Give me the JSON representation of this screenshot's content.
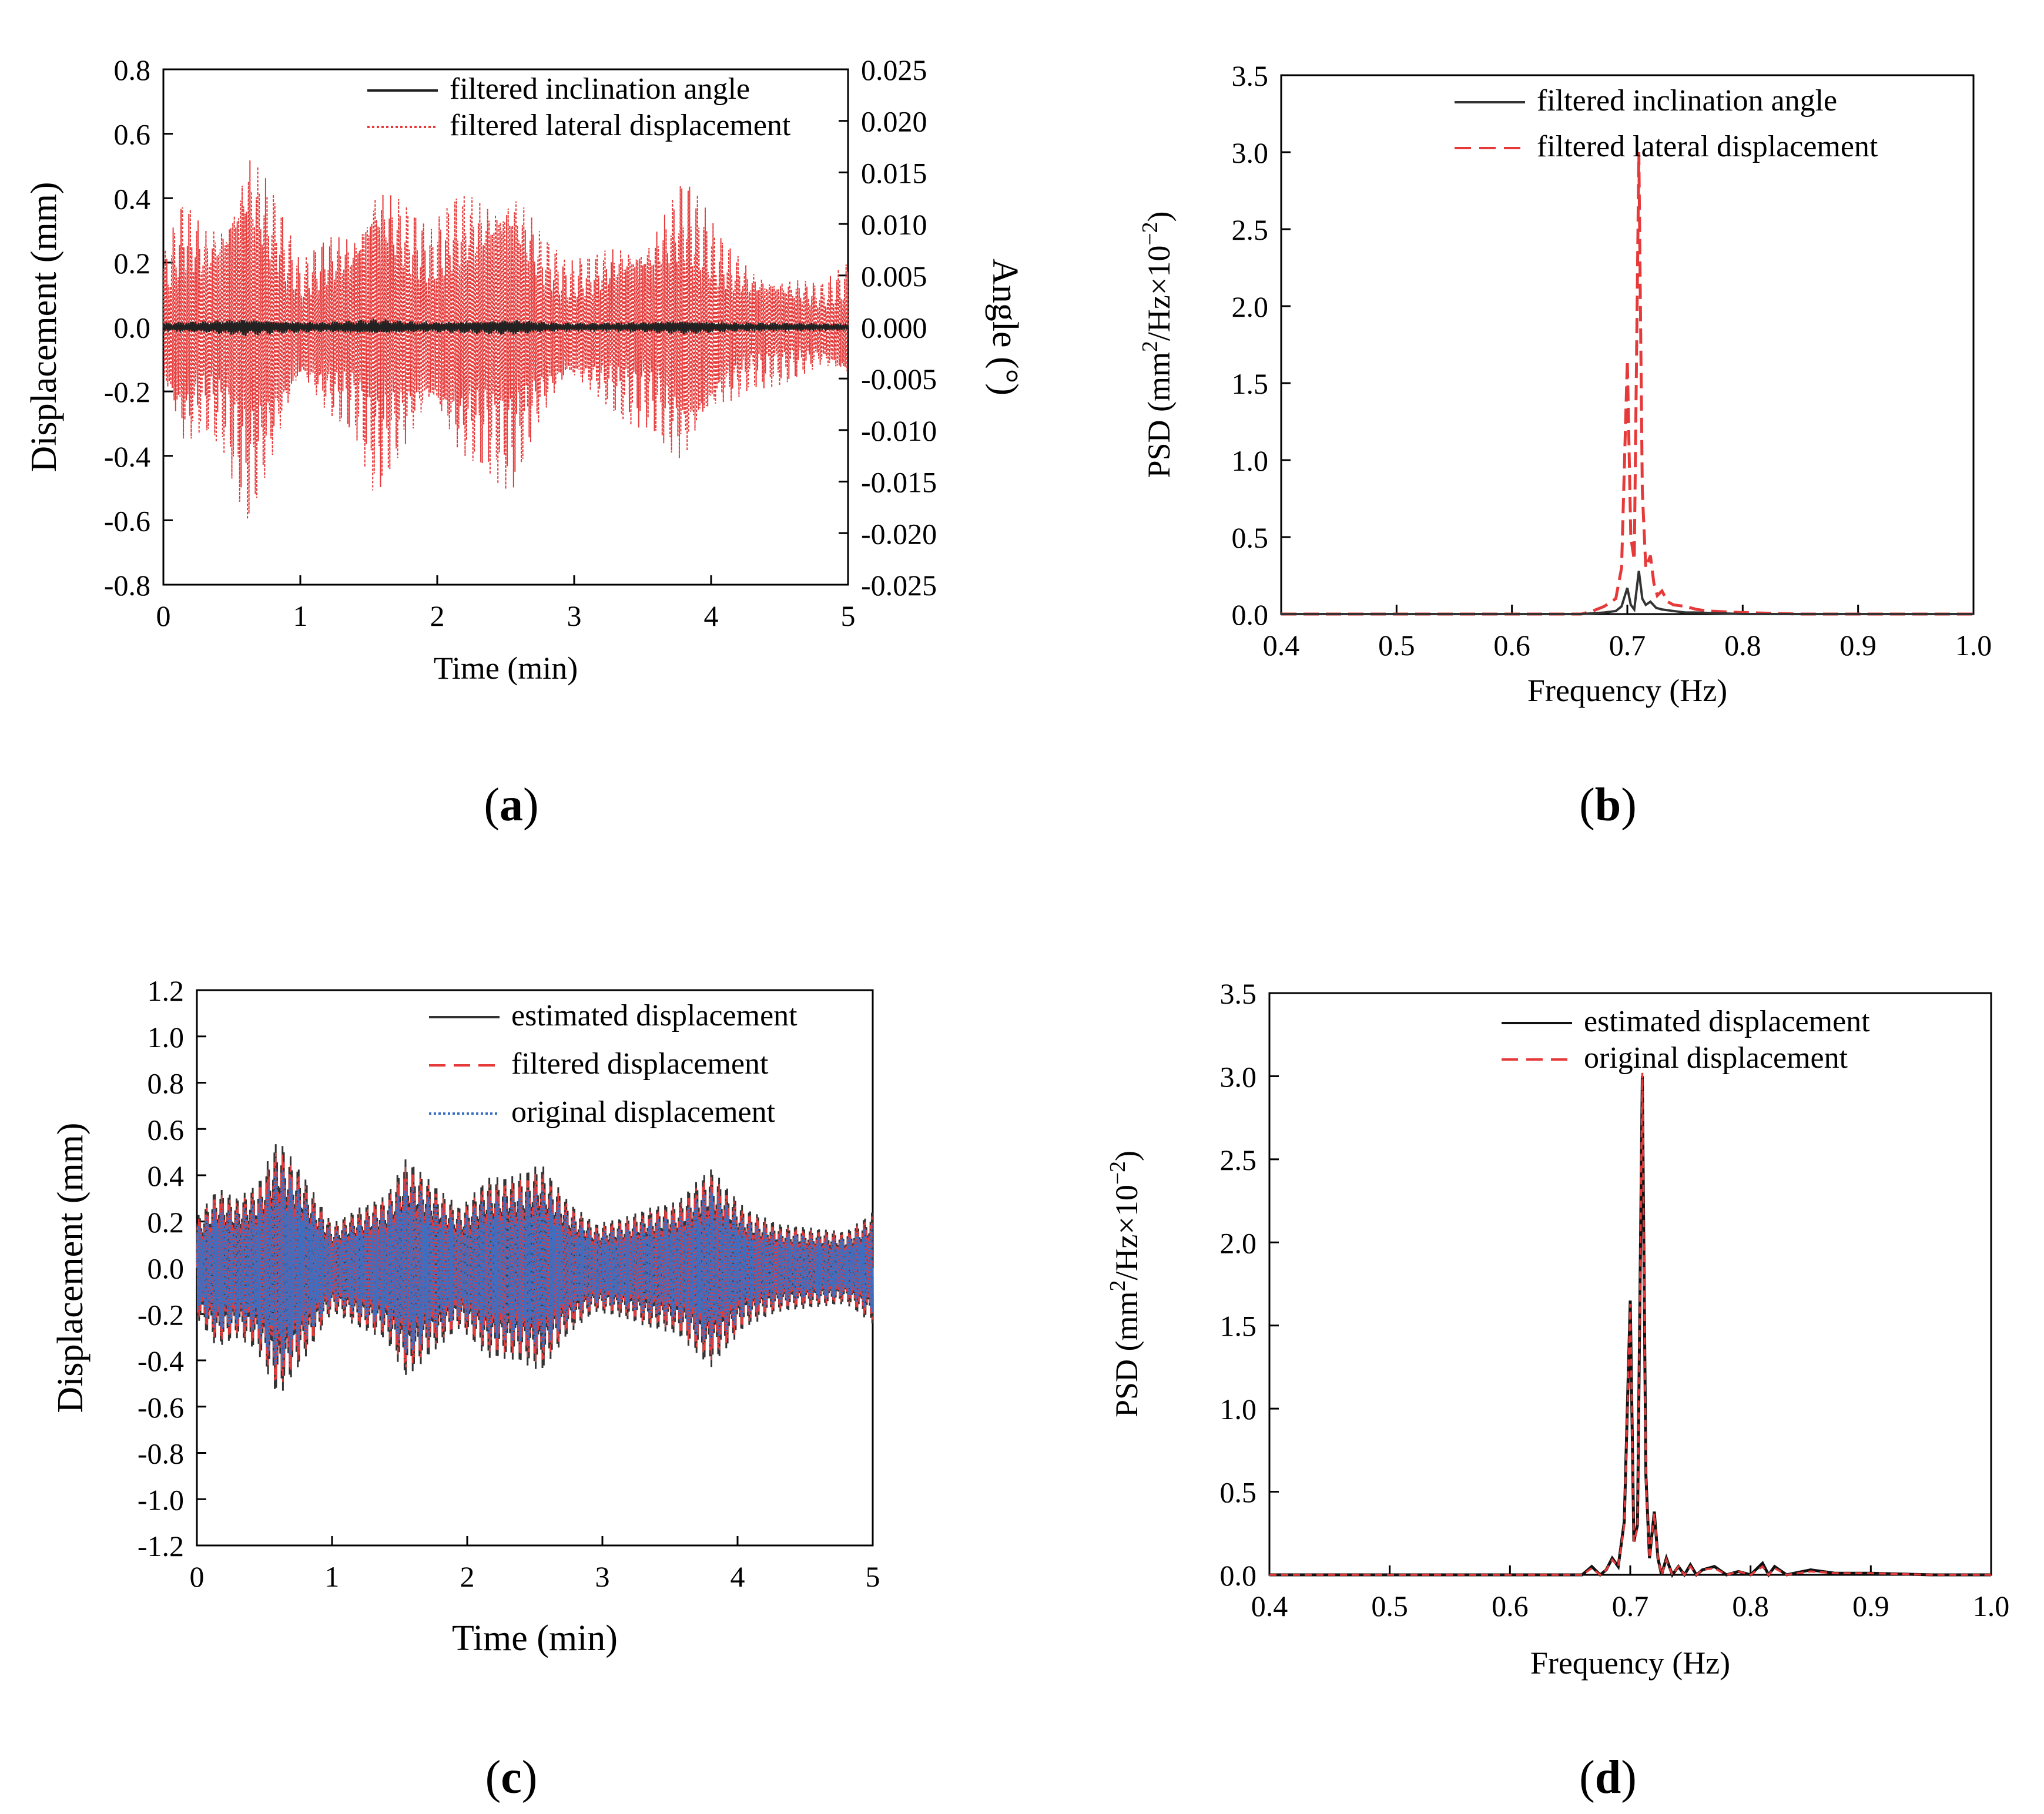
{
  "chart_data": [
    {
      "id": "a",
      "type": "line",
      "panel_label": "a",
      "xlabel": "Time (min)",
      "ylabel": "Displacement (mm)",
      "y2label": "Angle (°)",
      "xlim": [
        0,
        5
      ],
      "ylim": [
        -0.8,
        0.8
      ],
      "y2lim": [
        -0.025,
        0.025
      ],
      "x_ticks": [
        "0",
        "1",
        "2",
        "3",
        "4",
        "5"
      ],
      "y_ticks": [
        "-0.8",
        "-0.6",
        "-0.4",
        "-0.2",
        "0.0",
        "0.2",
        "0.4",
        "0.6",
        "0.8"
      ],
      "y2_ticks": [
        "-0.025",
        "-0.020",
        "-0.015",
        "-0.010",
        "-0.005",
        "0.000",
        "0.005",
        "0.010",
        "0.015",
        "0.020",
        "0.025"
      ],
      "legend_position": "top-right",
      "series": [
        {
          "name": "filtered inclination angle",
          "color": "#222222",
          "style": "solid",
          "envelope_t": [
            0,
            0.3,
            0.6,
            0.9,
            1.2,
            1.55,
            1.9,
            2.2,
            2.55,
            2.9,
            3.3,
            3.8,
            4.2,
            4.6,
            5.0
          ],
          "envelope_amp": [
            0.0004,
            0.0006,
            0.0009,
            0.0006,
            0.0005,
            0.0008,
            0.0005,
            0.0006,
            0.0008,
            0.0004,
            0.0004,
            0.0007,
            0.0004,
            0.0004,
            0.0003
          ]
        },
        {
          "name": "filtered lateral displacement",
          "color": "#e63a3a",
          "style": "dotted",
          "envelope_t": [
            0,
            0.15,
            0.3,
            0.45,
            0.62,
            0.8,
            1.0,
            1.2,
            1.4,
            1.55,
            1.75,
            1.95,
            2.15,
            2.35,
            2.55,
            2.75,
            2.95,
            3.15,
            3.35,
            3.55,
            3.8,
            4.05,
            4.3,
            4.55,
            4.8,
            5.0
          ],
          "envelope_amp": [
            0.22,
            0.42,
            0.34,
            0.4,
            0.64,
            0.45,
            0.2,
            0.3,
            0.34,
            0.54,
            0.42,
            0.3,
            0.44,
            0.46,
            0.52,
            0.32,
            0.2,
            0.24,
            0.3,
            0.32,
            0.49,
            0.3,
            0.2,
            0.18,
            0.14,
            0.2
          ]
        }
      ]
    },
    {
      "id": "b",
      "type": "line",
      "panel_label": "b",
      "xlabel": "Frequency (Hz)",
      "ylabel_main": "PSD (mm",
      "ylabel_sup1": "2",
      "ylabel_mid": "/Hz×10",
      "ylabel_sup2": "−2",
      "ylabel_end": ")",
      "xlim": [
        0.4,
        1.0
      ],
      "ylim": [
        0,
        3.5
      ],
      "x_ticks": [
        "0.4",
        "0.5",
        "0.6",
        "0.7",
        "0.8",
        "0.9",
        "1.0"
      ],
      "y_ticks": [
        "0.0",
        "0.5",
        "1.0",
        "1.5",
        "2.0",
        "2.5",
        "3.0",
        "3.5"
      ],
      "legend_position": "top-right",
      "series": [
        {
          "name": "filtered inclination angle",
          "color": "#333333",
          "style": "solid",
          "x": [
            0.4,
            0.66,
            0.68,
            0.69,
            0.695,
            0.7,
            0.703,
            0.706,
            0.71,
            0.713,
            0.716,
            0.72,
            0.725,
            0.73,
            0.74,
            0.75,
            0.76,
            0.8,
            1.0
          ],
          "y": [
            0.0,
            0.0,
            0.01,
            0.02,
            0.05,
            0.17,
            0.06,
            0.03,
            0.28,
            0.1,
            0.06,
            0.08,
            0.04,
            0.03,
            0.02,
            0.01,
            0.01,
            0.0,
            0.0
          ]
        },
        {
          "name": "filtered lateral displacement",
          "color": "#e63a3a",
          "style": "dashed",
          "x": [
            0.4,
            0.66,
            0.67,
            0.68,
            0.69,
            0.695,
            0.7,
            0.703,
            0.706,
            0.71,
            0.713,
            0.716,
            0.72,
            0.723,
            0.726,
            0.73,
            0.735,
            0.74,
            0.75,
            0.76,
            0.77,
            0.8,
            0.85,
            0.9,
            1.0
          ],
          "y": [
            0.0,
            0.0,
            0.02,
            0.05,
            0.1,
            0.3,
            1.65,
            0.5,
            0.35,
            3.0,
            0.8,
            0.3,
            0.38,
            0.2,
            0.12,
            0.15,
            0.08,
            0.06,
            0.05,
            0.03,
            0.02,
            0.01,
            0.0,
            0.0,
            0.0
          ]
        }
      ]
    },
    {
      "id": "c",
      "type": "line",
      "panel_label": "c",
      "xlabel": "Time (min)",
      "ylabel": "Displacement (mm)",
      "xlim": [
        0,
        5
      ],
      "ylim": [
        -1.2,
        1.2
      ],
      "x_ticks": [
        "0",
        "1",
        "2",
        "3",
        "4",
        "5"
      ],
      "y_ticks": [
        "-1.2",
        "-1.0",
        "-0.8",
        "-0.6",
        "-0.4",
        "-0.2",
        "0.0",
        "0.2",
        "0.4",
        "0.6",
        "0.8",
        "1.0",
        "1.2"
      ],
      "legend_position": "top-right",
      "series": [
        {
          "name": "estimated displacement",
          "color": "#333333",
          "style": "solid",
          "envelope_t": [
            0,
            0.15,
            0.3,
            0.45,
            0.6,
            0.8,
            1.0,
            1.2,
            1.4,
            1.55,
            1.75,
            1.95,
            2.15,
            2.35,
            2.55,
            2.75,
            2.95,
            3.15,
            3.35,
            3.55,
            3.8,
            4.05,
            4.3,
            4.55,
            4.8,
            5.0
          ],
          "envelope_amp": [
            0.25,
            0.4,
            0.35,
            0.42,
            0.65,
            0.45,
            0.22,
            0.3,
            0.36,
            0.55,
            0.42,
            0.3,
            0.45,
            0.46,
            0.52,
            0.33,
            0.22,
            0.25,
            0.3,
            0.33,
            0.5,
            0.3,
            0.22,
            0.2,
            0.18,
            0.28
          ]
        },
        {
          "name": "filtered displacement",
          "color": "#e63a3a",
          "style": "dashed"
        },
        {
          "name": "original displacement",
          "color": "#3a6fc4",
          "style": "dotted"
        }
      ]
    },
    {
      "id": "d",
      "type": "line",
      "panel_label": "d",
      "xlabel": "Frequency (Hz)",
      "ylabel_main": "PSD (mm",
      "ylabel_sup1": "2",
      "ylabel_mid": "/Hz×10",
      "ylabel_sup2": "−2",
      "ylabel_end": ")",
      "xlim": [
        0.4,
        1.0
      ],
      "ylim": [
        0,
        3.5
      ],
      "x_ticks": [
        "0.4",
        "0.5",
        "0.6",
        "0.7",
        "0.8",
        "0.9",
        "1.0"
      ],
      "y_ticks": [
        "0.0",
        "0.5",
        "1.0",
        "1.5",
        "2.0",
        "2.5",
        "3.0",
        "3.5"
      ],
      "legend_position": "top-right",
      "series": [
        {
          "name": "estimated displacement",
          "color": "#111111",
          "style": "solid",
          "x": [
            0.4,
            0.66,
            0.668,
            0.675,
            0.68,
            0.685,
            0.69,
            0.695,
            0.7,
            0.703,
            0.706,
            0.71,
            0.713,
            0.716,
            0.72,
            0.723,
            0.726,
            0.73,
            0.735,
            0.74,
            0.745,
            0.75,
            0.755,
            0.76,
            0.77,
            0.78,
            0.79,
            0.8,
            0.81,
            0.815,
            0.82,
            0.83,
            0.85,
            0.87,
            0.9,
            0.95,
            1.0
          ],
          "y": [
            0.0,
            0.0,
            0.05,
            0.0,
            0.03,
            0.1,
            0.05,
            0.32,
            1.65,
            0.2,
            0.3,
            3.0,
            0.6,
            0.1,
            0.38,
            0.1,
            0.0,
            0.1,
            0.0,
            0.05,
            0.0,
            0.06,
            0.0,
            0.03,
            0.05,
            0.0,
            0.02,
            0.0,
            0.07,
            0.0,
            0.05,
            0.0,
            0.03,
            0.01,
            0.01,
            0.0,
            0.0
          ]
        },
        {
          "name": "original displacement",
          "color": "#e63a3a",
          "style": "dashed",
          "x": [
            0.4,
            0.66,
            0.668,
            0.675,
            0.68,
            0.685,
            0.69,
            0.695,
            0.7,
            0.703,
            0.706,
            0.71,
            0.713,
            0.716,
            0.72,
            0.723,
            0.726,
            0.73,
            0.735,
            0.74,
            0.745,
            0.75,
            0.755,
            0.76,
            0.77,
            0.78,
            0.79,
            0.8,
            0.81,
            0.815,
            0.82,
            0.83,
            0.85,
            0.87,
            0.9,
            0.95,
            1.0
          ],
          "y": [
            0.0,
            0.0,
            0.04,
            0.0,
            0.03,
            0.09,
            0.05,
            0.3,
            1.63,
            0.2,
            0.28,
            3.02,
            0.58,
            0.1,
            0.37,
            0.1,
            0.0,
            0.09,
            0.0,
            0.05,
            0.0,
            0.05,
            0.0,
            0.03,
            0.04,
            0.0,
            0.02,
            0.0,
            0.05,
            0.0,
            0.04,
            0.0,
            0.02,
            0.01,
            0.01,
            0.0,
            0.0
          ]
        }
      ]
    }
  ]
}
